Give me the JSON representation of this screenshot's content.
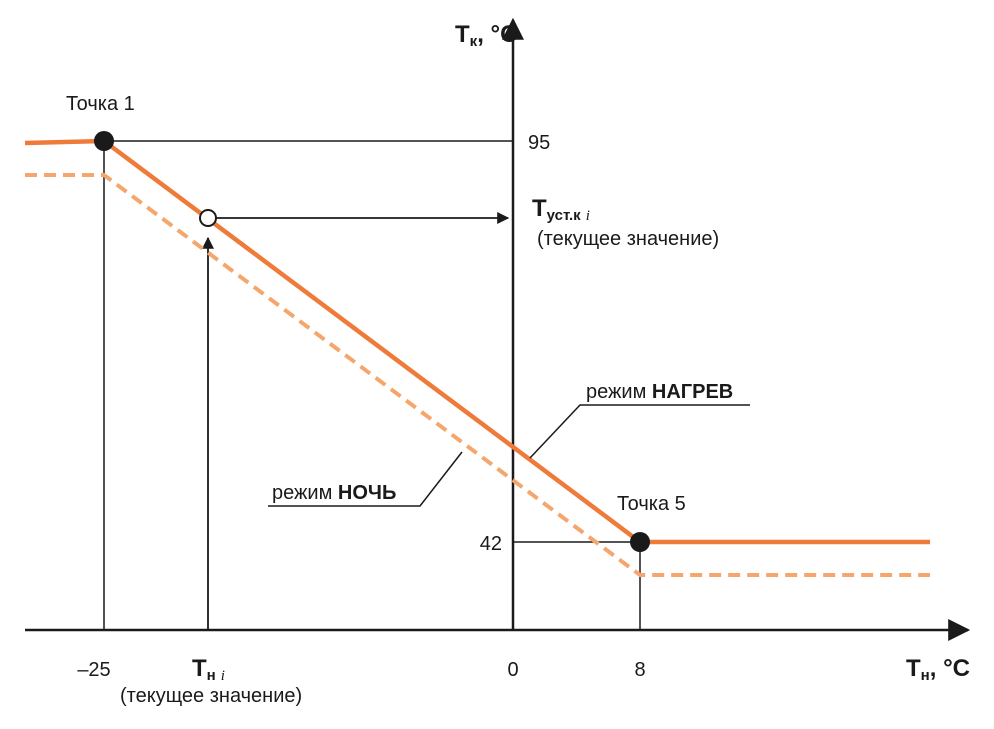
{
  "diagram": {
    "y_axis": {
      "symbol": "T",
      "subscript": "к",
      "unit": ", °C",
      "ticks": [
        "95",
        "42"
      ]
    },
    "x_axis": {
      "symbol": "T",
      "subscript": "н",
      "unit": ", °C",
      "ticks": [
        "–25",
        "0",
        "8"
      ]
    },
    "points": [
      "Точка 1",
      "Точка 5"
    ],
    "setpoint": {
      "symbol": "T",
      "subscript": "уст.к",
      "index": "i",
      "note": "(текущее значение)"
    },
    "outdoor": {
      "symbol": "T",
      "subscript": "н",
      "index": "i",
      "note": "(текущее значение)"
    },
    "modes": [
      {
        "prefix": "режим",
        "name": "НАГРЕВ"
      },
      {
        "prefix": "режим",
        "name": "НОЧЬ"
      }
    ]
  }
}
